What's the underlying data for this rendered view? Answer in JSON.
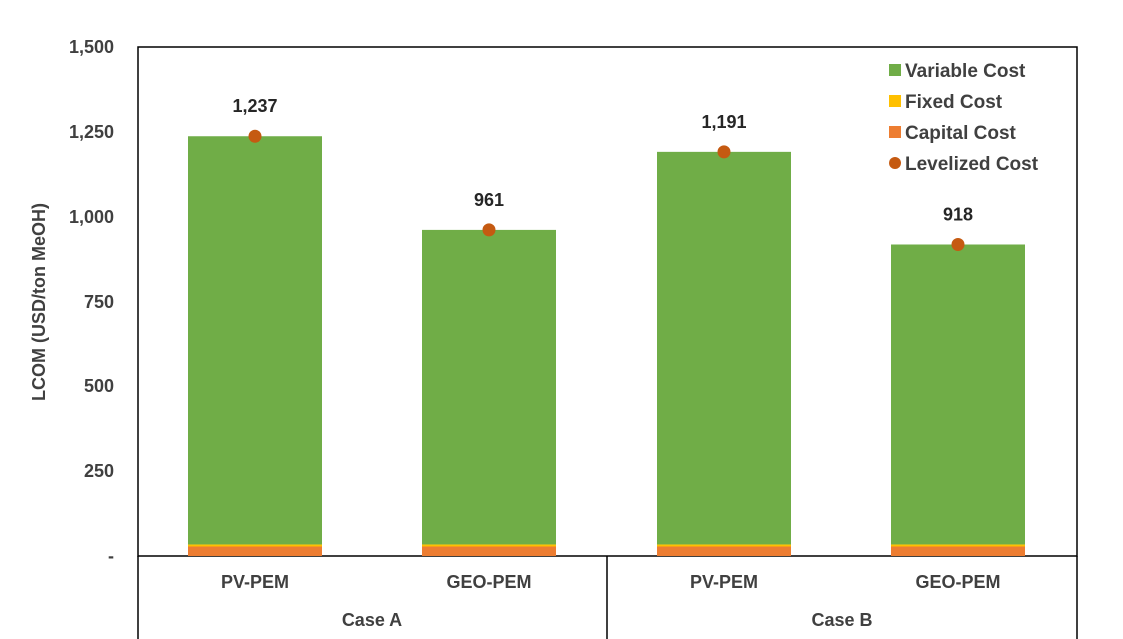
{
  "chart_data": {
    "type": "bar",
    "stacked": true,
    "groups": [
      {
        "name": "Case A",
        "categories": [
          "PV-PEM",
          "GEO-PEM"
        ]
      },
      {
        "name": "Case B",
        "categories": [
          "PV-PEM",
          "GEO-PEM"
        ]
      }
    ],
    "categories": [
      "PV-PEM",
      "GEO-PEM",
      "PV-PEM",
      "GEO-PEM"
    ],
    "series": [
      {
        "name": "Capital Cost",
        "color": "#ED7D31",
        "values": [
          28,
          28,
          28,
          28
        ]
      },
      {
        "name": "Fixed Cost",
        "color": "#FFC000",
        "values": [
          6,
          6,
          6,
          6
        ]
      },
      {
        "name": "Variable Cost",
        "color": "#70AD47",
        "values": [
          1203,
          927,
          1157,
          884
        ]
      }
    ],
    "levelized_cost": {
      "name": "Levelized Cost",
      "color": "#C55A11",
      "values": [
        1237,
        961,
        1191,
        918
      ],
      "labels": [
        "1,237",
        "961",
        "1,191",
        "918"
      ]
    },
    "legend_order": [
      "Variable Cost",
      "Fixed Cost",
      "Capital Cost",
      "Levelized Cost"
    ],
    "legend_position": "top-right",
    "ylabel": "LCOM (USD/ton MeOH)",
    "ylim": [
      0,
      1500
    ],
    "yticks": [
      0,
      250,
      500,
      750,
      1000,
      1250,
      1500
    ],
    "ytick_labels": [
      "-",
      "250",
      "500",
      "750",
      "1,000",
      "1,250",
      "1,500"
    ],
    "grid": false
  }
}
